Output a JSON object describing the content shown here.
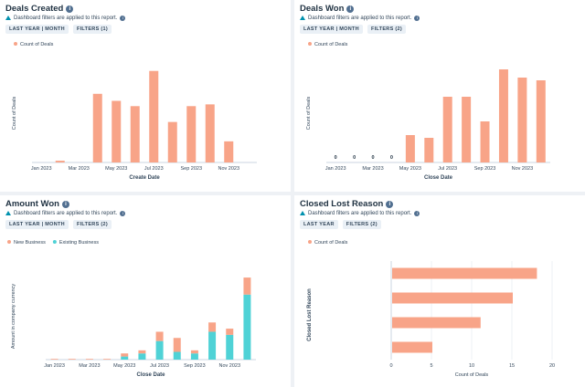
{
  "colors": {
    "salmon": "#f8a488",
    "teal": "#4fd2d6",
    "axis": "#cbd6e2"
  },
  "notice_text": "Dashboard filters are applied to this report.",
  "cards": [
    {
      "title": "Deals Created",
      "chips": [
        "LAST YEAR | MONTH",
        "FILTERS (1)"
      ],
      "chart_data": {
        "type": "bar",
        "legend": [
          "Count of Deals"
        ],
        "categories": [
          "Jan 2023",
          "Feb 2023",
          "Mar 2023",
          "Apr 2023",
          "May 2023",
          "Jun 2023",
          "Jul 2023",
          "Aug 2023",
          "Sep 2023",
          "Oct 2023",
          "Nov 2023",
          "Dec 2023"
        ],
        "tick_labels": [
          "Jan 2023",
          "Mar 2023",
          "May 2023",
          "Jul 2023",
          "Sep 2023",
          "Nov 2023"
        ],
        "values": [
          0,
          1,
          0,
          39,
          35,
          32,
          52,
          23,
          32,
          33,
          12,
          0
        ],
        "ylim": [
          0,
          56
        ],
        "xlabel": "Create Date",
        "ylabel": "Count of Deals"
      }
    },
    {
      "title": "Deals Won",
      "chips": [
        "LAST YEAR | MONTH",
        "FILTERS (2)"
      ],
      "chart_data": {
        "type": "bar",
        "legend": [
          "Count of Deals"
        ],
        "categories": [
          "Jan 2023",
          "Feb 2023",
          "Mar 2023",
          "Apr 2023",
          "May 2023",
          "Jun 2023",
          "Jul 2023",
          "Aug 2023",
          "Sep 2023",
          "Oct 2023",
          "Nov 2023",
          "Dec 2023"
        ],
        "tick_labels": [
          "Jan 2023",
          "Mar 2023",
          "May 2023",
          "Jul 2023",
          "Sep 2023",
          "Nov 2023"
        ],
        "values": [
          0,
          0,
          0,
          0,
          10,
          9,
          24,
          24,
          15,
          34,
          31,
          30
        ],
        "zero_labels": [
          "0",
          "0",
          "0",
          "0"
        ],
        "ylim": [
          0,
          36
        ],
        "xlabel": "Close Date",
        "ylabel": "Count of Deals"
      }
    },
    {
      "title": "Amount Won",
      "chips": [
        "LAST YEAR | MONTH",
        "FILTERS (2)"
      ],
      "chart_data": {
        "type": "bar",
        "stacked": true,
        "categories": [
          "Jan 2023",
          "Feb 2023",
          "Mar 2023",
          "Apr 2023",
          "May 2023",
          "Jun 2023",
          "Jul 2023",
          "Aug 2023",
          "Sep 2023",
          "Oct 2023",
          "Nov 2023",
          "Dec 2023"
        ],
        "tick_labels": [
          "Jan 2023",
          "Mar 2023",
          "May 2023",
          "Jul 2023",
          "Sep 2023",
          "Nov 2023"
        ],
        "series": [
          {
            "name": "New Business",
            "values": [
              0,
              0,
              0,
              0,
              1,
              1,
              3,
              4.5,
              1,
              3,
              2,
              5.5
            ]
          },
          {
            "name": "Existing Business",
            "values": [
              0,
              0,
              0,
              0,
              1,
              2,
              6,
              2.5,
              2,
              9,
              8,
              21
            ]
          }
        ],
        "ylim": [
          0,
          28
        ],
        "xlabel": "Close Date",
        "ylabel": "Amount in company currency"
      }
    },
    {
      "title": "Closed Lost Reason",
      "chips": [
        "LAST YEAR",
        "FILTERS (2)"
      ],
      "chart_data": {
        "type": "bar",
        "orientation": "horizontal",
        "legend": [
          "Count of Deals"
        ],
        "categories": [
          "",
          "",
          "",
          ""
        ],
        "values": [
          18,
          15,
          11,
          5
        ],
        "xlim": [
          0,
          20
        ],
        "x_ticks": [
          "0",
          "5",
          "10",
          "15",
          "20"
        ],
        "xlabel": "Count of Deals",
        "ylabel": "Closed Lost Reason"
      }
    }
  ]
}
